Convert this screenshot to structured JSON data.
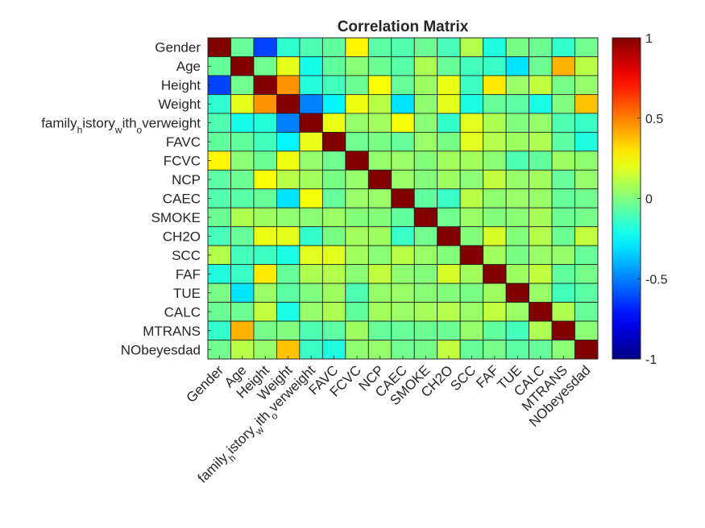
{
  "chart_data": {
    "type": "heatmap",
    "title": "Correlation Matrix",
    "xlabel": "",
    "ylabel": "",
    "colormap": "jet",
    "clim": [
      -1,
      1
    ],
    "colorbar": {
      "position": "right",
      "ticks": [
        {
          "value": 1,
          "label": "1"
        },
        {
          "value": 0.5,
          "label": "0.5"
        },
        {
          "value": 0,
          "label": "0"
        },
        {
          "value": -0.5,
          "label": "-0.5"
        },
        {
          "value": -1,
          "label": "-1"
        }
      ]
    },
    "labels": [
      {
        "main": "Gender",
        "subs": []
      },
      {
        "main": "Age",
        "subs": []
      },
      {
        "main": "Height",
        "subs": []
      },
      {
        "main": "Weight",
        "subs": []
      },
      {
        "main": "",
        "subs": [
          [
            "family",
            "n"
          ],
          [
            "h",
            "s"
          ],
          [
            "istory",
            "n"
          ],
          [
            "w",
            "s"
          ],
          [
            "ith",
            "n"
          ],
          [
            "o",
            "s"
          ],
          [
            "verweight",
            "n"
          ]
        ]
      },
      {
        "main": "FAVC",
        "subs": []
      },
      {
        "main": "FCVC",
        "subs": []
      },
      {
        "main": "NCP",
        "subs": []
      },
      {
        "main": "CAEC",
        "subs": []
      },
      {
        "main": "SMOKE",
        "subs": []
      },
      {
        "main": "CH2O",
        "subs": []
      },
      {
        "main": "SCC",
        "subs": []
      },
      {
        "main": "FAF",
        "subs": []
      },
      {
        "main": "TUE",
        "subs": []
      },
      {
        "main": "CALC",
        "subs": []
      },
      {
        "main": "MTRANS",
        "subs": []
      },
      {
        "main": "NObeyesdad",
        "subs": []
      }
    ],
    "matrix": [
      [
        1.0,
        -0.05,
        -0.62,
        -0.16,
        -0.1,
        -0.06,
        0.27,
        -0.07,
        -0.09,
        -0.04,
        -0.11,
        0.1,
        -0.19,
        -0.01,
        -0.04,
        -0.15,
        -0.03
      ],
      [
        -0.05,
        1.0,
        -0.03,
        0.2,
        -0.21,
        -0.06,
        0.02,
        -0.04,
        -0.08,
        0.09,
        -0.05,
        -0.12,
        -0.14,
        -0.3,
        -0.04,
        0.4,
        0.11
      ],
      [
        -0.62,
        -0.03,
        1.0,
        0.46,
        -0.18,
        -0.12,
        -0.04,
        0.24,
        -0.05,
        0.06,
        0.21,
        -0.13,
        0.29,
        0.05,
        0.13,
        -0.02,
        0.04
      ],
      [
        -0.16,
        0.2,
        0.46,
        1.0,
        -0.5,
        -0.27,
        0.22,
        0.11,
        -0.3,
        0.03,
        0.2,
        -0.2,
        -0.05,
        -0.07,
        -0.2,
        0.0,
        0.37
      ],
      [
        -0.1,
        -0.21,
        -0.18,
        -0.5,
        1.0,
        0.21,
        0.04,
        0.07,
        0.23,
        0.02,
        -0.15,
        0.19,
        0.09,
        0.0,
        0.04,
        -0.1,
        -0.14
      ],
      [
        -0.06,
        -0.06,
        -0.12,
        -0.27,
        0.21,
        1.0,
        -0.03,
        -0.01,
        -0.05,
        0.05,
        -0.01,
        0.19,
        0.1,
        0.06,
        0.09,
        -0.07,
        -0.19
      ],
      [
        0.27,
        0.02,
        -0.04,
        0.22,
        0.04,
        -0.03,
        1.0,
        0.04,
        0.05,
        0.01,
        0.07,
        0.07,
        0.02,
        -0.1,
        -0.06,
        0.06,
        0.03
      ],
      [
        -0.07,
        -0.04,
        0.24,
        0.11,
        0.07,
        -0.01,
        0.04,
        1.0,
        0.05,
        0.01,
        0.06,
        0.02,
        0.13,
        0.04,
        0.07,
        -0.05,
        0.04
      ],
      [
        -0.09,
        -0.08,
        -0.05,
        -0.3,
        0.23,
        -0.05,
        0.05,
        0.05,
        1.0,
        -0.06,
        -0.14,
        0.11,
        0.03,
        0.05,
        0.05,
        -0.05,
        -0.03
      ],
      [
        -0.04,
        0.09,
        0.06,
        0.03,
        0.02,
        0.05,
        0.01,
        0.01,
        -0.06,
        1.0,
        -0.03,
        0.05,
        0.01,
        0.02,
        0.08,
        -0.04,
        -0.02
      ],
      [
        -0.11,
        -0.05,
        0.21,
        0.2,
        -0.15,
        -0.01,
        0.07,
        0.06,
        -0.14,
        -0.03,
        1.0,
        0.01,
        0.17,
        0.01,
        0.1,
        -0.04,
        0.13
      ],
      [
        0.1,
        -0.12,
        -0.13,
        -0.2,
        0.19,
        0.19,
        0.07,
        0.02,
        0.11,
        0.05,
        0.01,
        1.0,
        0.07,
        -0.01,
        0.05,
        0.04,
        -0.05
      ],
      [
        -0.19,
        -0.14,
        0.29,
        -0.05,
        0.09,
        0.1,
        0.02,
        0.13,
        0.03,
        0.01,
        0.17,
        0.07,
        1.0,
        0.06,
        0.13,
        -0.06,
        -0.02
      ],
      [
        -0.01,
        -0.3,
        0.05,
        -0.07,
        0.0,
        0.06,
        -0.1,
        0.04,
        0.05,
        0.02,
        0.01,
        -0.01,
        0.06,
        1.0,
        0.05,
        -0.12,
        -0.07
      ],
      [
        -0.04,
        -0.04,
        0.13,
        -0.2,
        0.04,
        0.09,
        -0.06,
        0.07,
        0.05,
        0.08,
        0.1,
        0.05,
        0.13,
        0.05,
        1.0,
        0.09,
        -0.05
      ],
      [
        -0.15,
        0.4,
        -0.02,
        0.0,
        -0.1,
        -0.07,
        0.06,
        -0.05,
        -0.05,
        -0.04,
        -0.04,
        0.04,
        -0.06,
        -0.12,
        0.09,
        1.0,
        0.02
      ],
      [
        -0.03,
        0.11,
        0.04,
        0.37,
        -0.14,
        -0.19,
        0.03,
        0.04,
        -0.03,
        -0.02,
        0.13,
        -0.05,
        -0.02,
        -0.07,
        -0.05,
        0.02,
        1.0
      ]
    ]
  }
}
